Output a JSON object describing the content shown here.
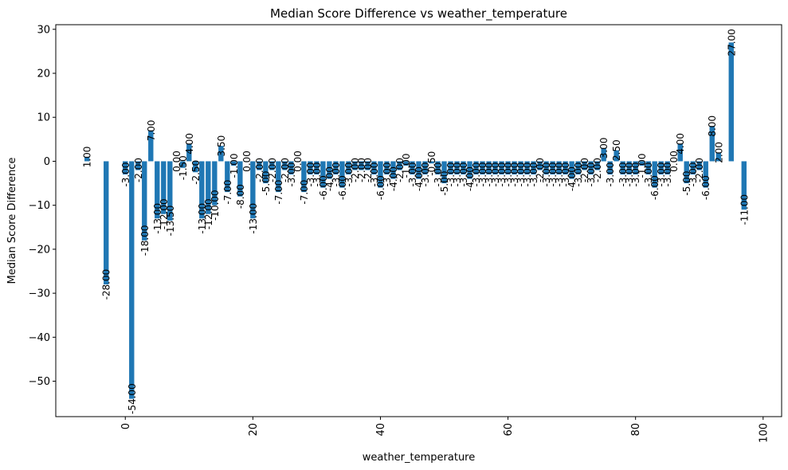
{
  "chart_data": {
    "type": "bar",
    "title": "Median Score Difference vs weather_temperature",
    "xlabel": "weather_temperature",
    "ylabel": "Median Score Difference",
    "xlim": [
      -10.9,
      102.9
    ],
    "ylim": [
      -58.05,
      31.05
    ],
    "xticks": [
      0,
      20,
      40,
      60,
      80,
      100
    ],
    "yticks": [
      -50,
      -40,
      -30,
      -20,
      -10,
      0,
      10,
      20,
      30
    ],
    "grid": false,
    "legend": "none",
    "bar_color": "#1f77b4",
    "data_label_format": "2 decimals, rotated 90°",
    "x": [
      -6,
      -3,
      0,
      1,
      2,
      3,
      4,
      5,
      6,
      7,
      8,
      9,
      10,
      11,
      12,
      13,
      14,
      15,
      16,
      17,
      18,
      19,
      20,
      21,
      22,
      23,
      24,
      25,
      26,
      27,
      28,
      29,
      30,
      31,
      32,
      33,
      34,
      35,
      36,
      37,
      38,
      39,
      40,
      41,
      42,
      43,
      44,
      45,
      46,
      47,
      48,
      49,
      50,
      51,
      52,
      53,
      54,
      55,
      56,
      57,
      58,
      59,
      60,
      61,
      62,
      63,
      64,
      65,
      66,
      67,
      68,
      69,
      70,
      71,
      72,
      73,
      74,
      75,
      76,
      77,
      78,
      79,
      80,
      81,
      82,
      83,
      84,
      85,
      86,
      87,
      88,
      89,
      90,
      91,
      92,
      93,
      95,
      97
    ],
    "values": [
      1,
      -28,
      -3,
      -54,
      -2,
      -18,
      7,
      -13,
      -12,
      -13.5,
      0,
      -1.5,
      4,
      -2.5,
      -13,
      -12,
      -10,
      3.5,
      -7,
      -1,
      -8,
      0,
      -13,
      -2,
      -5,
      -2,
      -7,
      -2,
      -3,
      0,
      -7,
      -3,
      -3,
      -6,
      -4,
      -3,
      -6,
      -3,
      -2,
      -2,
      -2,
      -3,
      -6,
      -3,
      -4,
      -2,
      -1,
      -3,
      -4,
      -3,
      -0.5,
      -3,
      -5,
      -3,
      -3,
      -3,
      -4,
      -3,
      -3,
      -3,
      -3,
      -3,
      -3,
      -3,
      -3,
      -3,
      -3,
      -2,
      -3,
      -3,
      -3,
      -3,
      -4,
      -3,
      -2,
      -3,
      -2,
      3,
      -3,
      2.5,
      -3,
      -3,
      -3,
      -1,
      -3,
      -6,
      -3,
      -3,
      0,
      4,
      -5,
      -3,
      -2,
      -6,
      8,
      2,
      27,
      -11
    ],
    "data_labels": [
      "1.00",
      "-28.00",
      "-3.00",
      "-54.00",
      "-2.00",
      "-18.00",
      "7.00",
      "-13.00",
      "-12.00",
      "-13.50",
      "0.00",
      "-1.50",
      "4.00",
      "-2.50",
      "-13.00",
      "-12.00",
      "-10.00",
      "3.50",
      "-7.00",
      "-1.00",
      "-8.00",
      "0.00",
      "-13.00",
      "-2.00",
      "-5.00",
      "-2.00",
      "-7.00",
      "-2.00",
      "-3.00",
      "0.00",
      "-7.00",
      "-3.00",
      "-3.00",
      "-6.00",
      "-4.00",
      "-3.00",
      "-6.00",
      "-3.00",
      "-2.00",
      "-2.00",
      "-2.00",
      "-3.00",
      "-6.00",
      "-3.00",
      "-4.00",
      "-2.00",
      "-1.00",
      "-3.00",
      "-4.00",
      "-3.00",
      "-0.50",
      "-3.00",
      "-5.00",
      "-3.00",
      "-3.00",
      "-3.00",
      "-4.00",
      "-3.00",
      "-3.00",
      "-3.00",
      "-3.00",
      "-3.00",
      "-3.00",
      "-3.00",
      "-3.00",
      "-3.00",
      "-3.00",
      "-2.00",
      "-3.00",
      "-3.00",
      "-3.00",
      "-3.00",
      "-4.00",
      "-3.00",
      "-2.00",
      "-3.00",
      "-2.00",
      "3.00",
      "-3.00",
      "2.50",
      "-3.00",
      "-3.00",
      "-3.00",
      "-1.00",
      "-3.00",
      "-6.00",
      "-3.00",
      "-3.00",
      "0.00",
      "4.00",
      "-5.00",
      "-3.00",
      "-2.00",
      "-6.00",
      "8.00",
      "2.00",
      "27.00",
      "-11.00"
    ]
  }
}
